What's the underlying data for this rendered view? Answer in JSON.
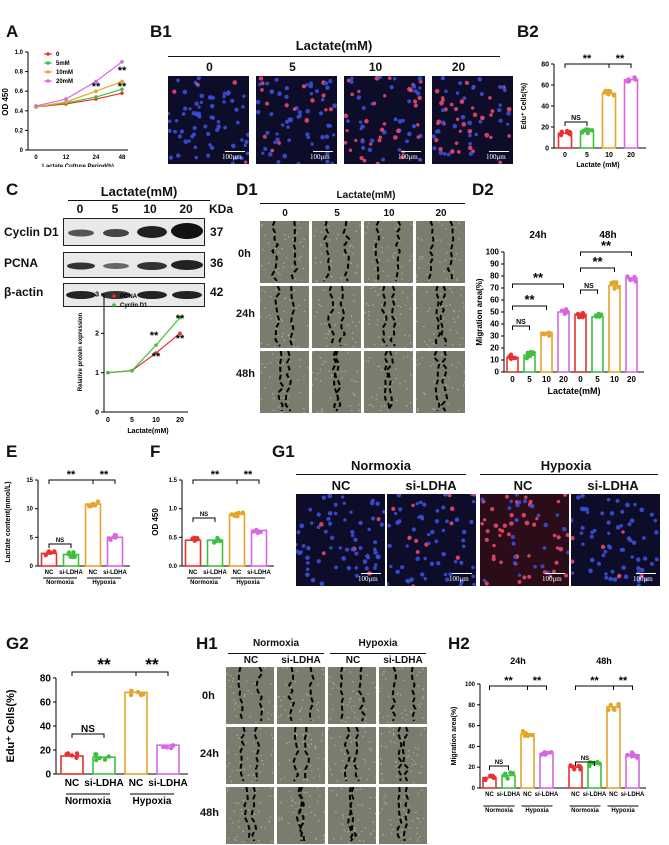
{
  "panels": {
    "A": {
      "label": "A"
    },
    "B1": {
      "label": "B1",
      "header": "Lactate(mM)",
      "cols": [
        "0",
        "5",
        "10",
        "20"
      ],
      "scale": "100μm"
    },
    "B2": {
      "label": "B2"
    },
    "C": {
      "label": "C",
      "header": "Lactate(mM)",
      "cols": [
        "0",
        "5",
        "10",
        "20"
      ],
      "kda": "KDa",
      "rows": [
        {
          "name": "Cyclin D1",
          "kda": "37"
        },
        {
          "name": "PCNA",
          "kda": "36"
        },
        {
          "name": "β-actin",
          "kda": "42"
        }
      ]
    },
    "D1": {
      "label": "D1",
      "header": "Lactate(mM)",
      "cols": [
        "0",
        "5",
        "10",
        "20"
      ],
      "rows": [
        "0h",
        "24h",
        "48h"
      ]
    },
    "D2": {
      "label": "D2"
    },
    "E": {
      "label": "E"
    },
    "F": {
      "label": "F"
    },
    "G1": {
      "label": "G1",
      "groups": [
        "Normoxia",
        "Hypoxia"
      ],
      "cols": [
        "NC",
        "si-LDHA",
        "NC",
        "si-LDHA"
      ],
      "scale": "100μm"
    },
    "G2": {
      "label": "G2"
    },
    "H1": {
      "label": "H1",
      "groups": [
        "Normoxia",
        "Hypoxia"
      ],
      "cols": [
        "NC",
        "si-LDHA",
        "NC",
        "si-LDHA"
      ],
      "rows": [
        "0h",
        "24h",
        "48h"
      ]
    },
    "H2": {
      "label": "H2"
    }
  },
  "chart_data": [
    {
      "id": "A",
      "type": "line",
      "x": [
        0,
        12,
        24,
        48
      ],
      "xticks": [
        "0",
        "12",
        "24",
        "48"
      ],
      "xlabel": "Lactate Culture Period(h)",
      "ylabel": "OD 450",
      "ylim": [
        0,
        1.0
      ],
      "yticks": [
        "0",
        "0.2",
        "0.4",
        "0.6",
        "0.8",
        "1.0"
      ],
      "series": [
        {
          "name": "0",
          "color": "#e8312f",
          "values": [
            0.44,
            0.47,
            0.52,
            0.58
          ]
        },
        {
          "name": "5mM",
          "color": "#3fbf3f",
          "values": [
            0.44,
            0.48,
            0.54,
            0.62
          ]
        },
        {
          "name": "10mM",
          "color": "#e3a52a",
          "values": [
            0.44,
            0.49,
            0.6,
            0.7
          ]
        },
        {
          "name": "20mM",
          "color": "#d667e0",
          "values": [
            0.45,
            0.52,
            0.7,
            0.9
          ]
        }
      ],
      "annotations": [
        "**",
        "**",
        "**"
      ]
    },
    {
      "id": "B2",
      "type": "bar",
      "categories": [
        "0",
        "5",
        "10",
        "20"
      ],
      "values": [
        14,
        16,
        52,
        65
      ],
      "colors": [
        "#e8312f",
        "#3fbf3f",
        "#e3a52a",
        "#d667e0"
      ],
      "xlabel": "Lactate (mM)",
      "ylabel": "Edu⁺ Cells(%)",
      "ylim": [
        0,
        80
      ],
      "yticks": [
        "0",
        "20",
        "40",
        "60",
        "80"
      ],
      "annotations": [
        "NS",
        "**",
        "**"
      ]
    },
    {
      "id": "C",
      "type": "line",
      "x": [
        0,
        5,
        10,
        20
      ],
      "xticks": [
        "0",
        "5",
        "10",
        "20"
      ],
      "xlabel": "Lactate(mM)",
      "ylabel": "Relative protein expression",
      "ylim": [
        0,
        3
      ],
      "yticks": [
        "0",
        "1",
        "2",
        "3"
      ],
      "series": [
        {
          "name": "PCNA",
          "color": "#e8312f",
          "values": [
            1.0,
            1.05,
            1.5,
            2.0
          ]
        },
        {
          "name": "Cyclin D1",
          "color": "#3fbf3f",
          "values": [
            1.0,
            1.05,
            1.7,
            2.4
          ]
        }
      ],
      "annotations": [
        "**",
        "**",
        "**",
        "**"
      ]
    },
    {
      "id": "D2",
      "type": "bar",
      "groups": [
        "24h",
        "48h"
      ],
      "categories": [
        "0",
        "5",
        "10",
        "20",
        "0",
        "5",
        "10",
        "20"
      ],
      "values": [
        12,
        14,
        33,
        50,
        48,
        46,
        72,
        78
      ],
      "colors": [
        "#e8312f",
        "#3fbf3f",
        "#e3a52a",
        "#d667e0",
        "#e8312f",
        "#3fbf3f",
        "#e3a52a",
        "#d667e0"
      ],
      "xlabel": "Lactate(mM)",
      "ylabel": "Migration area(%)",
      "ylim": [
        0,
        100
      ],
      "yticks": [
        "0",
        "10",
        "20",
        "30",
        "40",
        "50",
        "60",
        "70",
        "80",
        "90",
        "100"
      ],
      "annotations": [
        "NS",
        "**",
        "**",
        "NS",
        "**",
        "**"
      ]
    },
    {
      "id": "E",
      "type": "bar",
      "categories": [
        "NC",
        "si-LDHA",
        "NC",
        "si-LDHA"
      ],
      "groups": [
        "Normoxia",
        "Hypoxia"
      ],
      "values": [
        2.2,
        2.0,
        10.8,
        5.0
      ],
      "colors": [
        "#e8312f",
        "#3fbf3f",
        "#e3a52a",
        "#d667e0"
      ],
      "ylabel": "Lactate content(mmol/L)",
      "ylim": [
        0,
        15
      ],
      "yticks": [
        "0",
        "5",
        "10",
        "15"
      ],
      "annotations": [
        "NS",
        "**",
        "**"
      ]
    },
    {
      "id": "F",
      "type": "bar",
      "categories": [
        "NC",
        "si-LDHA",
        "NC",
        "si-LDHA"
      ],
      "groups": [
        "Normoxia",
        "Hypoxia"
      ],
      "values": [
        0.45,
        0.45,
        0.9,
        0.62
      ],
      "colors": [
        "#e8312f",
        "#3fbf3f",
        "#e3a52a",
        "#d667e0"
      ],
      "ylabel": "OD 450",
      "ylim": [
        0,
        1.5
      ],
      "yticks": [
        "0.0",
        "0.5",
        "1.0",
        "1.5"
      ],
      "annotations": [
        "NS",
        "**",
        "**"
      ]
    },
    {
      "id": "G2",
      "type": "bar",
      "categories": [
        "NC",
        "si-LDHA",
        "NC",
        "si-LDHA"
      ],
      "groups": [
        "Normoxia",
        "Hypoxia"
      ],
      "values": [
        15,
        14,
        68,
        24
      ],
      "colors": [
        "#e8312f",
        "#3fbf3f",
        "#e3a52a",
        "#d667e0"
      ],
      "ylabel": "Edu⁺ Cells(%)",
      "ylim": [
        0,
        80
      ],
      "yticks": [
        "0",
        "20",
        "40",
        "60",
        "80"
      ],
      "annotations": [
        "NS",
        "**",
        "**"
      ]
    },
    {
      "id": "H2",
      "type": "bar",
      "subgroups": [
        "24h",
        "48h"
      ],
      "categories": [
        "NC",
        "si-LDHA",
        "NC",
        "si-LDHA",
        "NC",
        "si-LDHA",
        "NC",
        "si-LDHA"
      ],
      "groups": [
        "Normoxia",
        "Hypoxia",
        "Normoxia",
        "Hypoxia"
      ],
      "values": [
        10,
        12,
        52,
        33,
        20,
        23,
        78,
        32
      ],
      "colors": [
        "#e8312f",
        "#3fbf3f",
        "#e3a52a",
        "#d667e0",
        "#e8312f",
        "#3fbf3f",
        "#e3a52a",
        "#d667e0"
      ],
      "ylabel": "Migration area(%)",
      "ylim": [
        0,
        100
      ],
      "yticks": [
        "0",
        "20",
        "40",
        "60",
        "80",
        "100"
      ],
      "annotations": [
        "NS",
        "**",
        "**",
        "NS",
        "**",
        "**"
      ]
    }
  ]
}
